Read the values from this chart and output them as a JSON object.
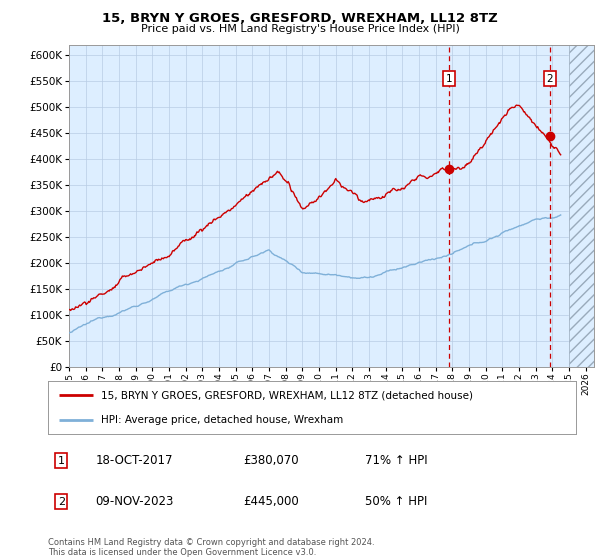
{
  "title": "15, BRYN Y GROES, GRESFORD, WREXHAM, LL12 8TZ",
  "subtitle": "Price paid vs. HM Land Registry's House Price Index (HPI)",
  "ylim": [
    0,
    620000
  ],
  "yticks": [
    0,
    50000,
    100000,
    150000,
    200000,
    250000,
    300000,
    350000,
    400000,
    450000,
    500000,
    550000,
    600000
  ],
  "xlim": [
    1995,
    2026.5
  ],
  "transaction1_x": 2017.79,
  "transaction1_y": 380070,
  "transaction2_x": 2023.86,
  "transaction2_y": 445000,
  "legend_line1": "15, BRYN Y GROES, GRESFORD, WREXHAM, LL12 8TZ (detached house)",
  "legend_line2": "HPI: Average price, detached house, Wrexham",
  "ann1_date": "18-OCT-2017",
  "ann1_price": "£380,070",
  "ann1_hpi": "71% ↑ HPI",
  "ann2_date": "09-NOV-2023",
  "ann2_price": "£445,000",
  "ann2_hpi": "50% ↑ HPI",
  "footer": "Contains HM Land Registry data © Crown copyright and database right 2024.\nThis data is licensed under the Open Government Licence v3.0.",
  "hpi_color": "#7fb0d8",
  "price_color": "#cc0000",
  "bg_color": "#ddeeff",
  "grid_color": "#b8cce4",
  "vline_color": "#cc0000",
  "hatch_start": 2025.0
}
